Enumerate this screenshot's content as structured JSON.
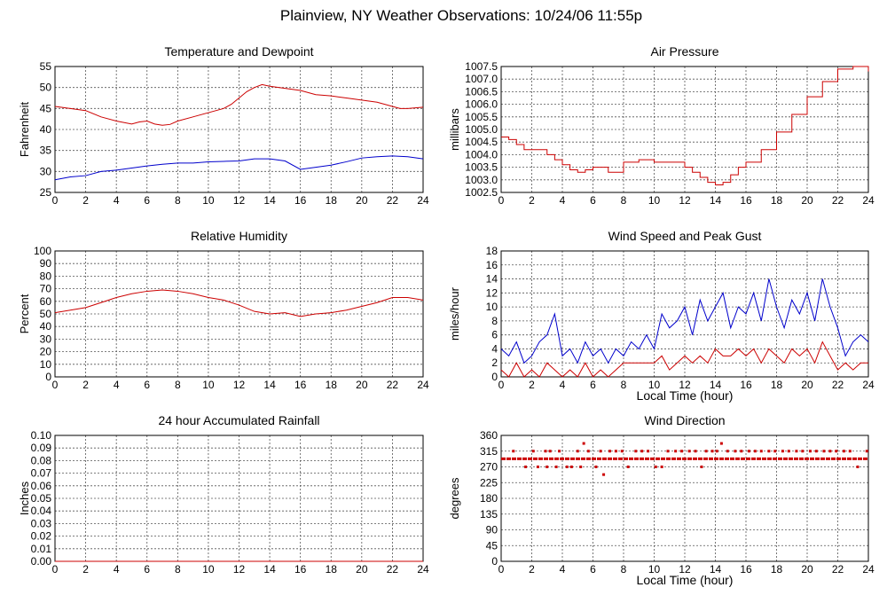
{
  "page": {
    "title": "Plainview, NY Weather Observations: 10/24/06 11:55p"
  },
  "chart_data": [
    {
      "type": "line",
      "title": "Temperature and Dewpoint",
      "xlabel": "",
      "ylabel": "Fahrenheit",
      "xlim": [
        0,
        24
      ],
      "ylim": [
        25,
        55
      ],
      "xticks": [
        0,
        2,
        4,
        6,
        8,
        10,
        12,
        14,
        16,
        18,
        20,
        22,
        24
      ],
      "yticks": [
        25,
        30,
        35,
        40,
        45,
        50,
        55
      ],
      "grid": true,
      "series": [
        {
          "color": "#cc0000",
          "style": "line",
          "x": [
            0,
            1,
            2,
            3,
            4,
            5,
            5.5,
            6,
            6.5,
            7,
            7.5,
            8,
            9,
            10,
            11,
            11.5,
            12,
            12.5,
            13,
            13.5,
            14,
            15,
            16,
            17,
            18,
            19,
            20,
            21,
            22,
            22.5,
            23,
            24
          ],
          "y": [
            45.5,
            45,
            44.5,
            43,
            42,
            41.3,
            41.8,
            42,
            41.3,
            41,
            41.2,
            42,
            43,
            44,
            45,
            46,
            47.5,
            49,
            50,
            50.7,
            50.3,
            49.8,
            49.3,
            48.3,
            48,
            47.5,
            47,
            46.5,
            45.5,
            45,
            45,
            45.3
          ]
        },
        {
          "color": "#0000cc",
          "style": "line",
          "x": [
            0,
            1,
            2,
            3,
            4,
            5,
            6,
            7,
            8,
            9,
            10,
            11,
            12,
            13,
            14,
            15,
            16,
            17,
            18,
            19,
            20,
            21,
            22,
            23,
            24
          ],
          "y": [
            28,
            28.7,
            29,
            30,
            30.3,
            30.8,
            31.3,
            31.7,
            32,
            32,
            32.3,
            32.4,
            32.5,
            33,
            33,
            32.5,
            30.5,
            31,
            31.5,
            32.3,
            33.2,
            33.5,
            33.7,
            33.5,
            33
          ]
        }
      ]
    },
    {
      "type": "line",
      "title": "Air Pressure",
      "xlabel": "",
      "ylabel": "millibars",
      "xlim": [
        0,
        24
      ],
      "ylim": [
        1002.5,
        1007.5
      ],
      "xticks": [
        0,
        2,
        4,
        6,
        8,
        10,
        12,
        14,
        16,
        18,
        20,
        22,
        24
      ],
      "yticks": [
        1002.5,
        1003.0,
        1003.5,
        1004.0,
        1004.5,
        1005.0,
        1005.5,
        1006.0,
        1006.5,
        1007.0,
        1007.5
      ],
      "ytick_labels": [
        "1002.5",
        "1003.0",
        "1003.5",
        "1004.0",
        "1004.5",
        "1005.0",
        "1005.5",
        "1006.0",
        "1006.5",
        "1007.0",
        "1007.5"
      ],
      "grid": true,
      "series": [
        {
          "color": "#cc0000",
          "style": "step",
          "x": [
            0,
            0.5,
            1,
            1.5,
            2,
            3,
            3.5,
            4,
            4.5,
            5,
            5.5,
            6,
            7,
            7.8,
            8,
            9,
            10,
            11,
            12,
            12.5,
            13,
            13.5,
            14,
            14.5,
            15,
            15.5,
            16,
            17,
            18,
            19,
            20,
            21,
            22,
            23,
            24
          ],
          "y": [
            1004.7,
            1004.6,
            1004.4,
            1004.2,
            1004.2,
            1004.0,
            1003.8,
            1003.6,
            1003.4,
            1003.3,
            1003.4,
            1003.5,
            1003.3,
            1003.3,
            1003.7,
            1003.8,
            1003.7,
            1003.7,
            1003.5,
            1003.3,
            1003.1,
            1002.9,
            1002.8,
            1002.9,
            1003.2,
            1003.5,
            1003.7,
            1004.2,
            1004.9,
            1005.6,
            1006.3,
            1006.9,
            1007.4,
            1007.5,
            1007.3
          ]
        }
      ]
    },
    {
      "type": "line",
      "title": "Relative Humidity",
      "xlabel": "",
      "ylabel": "Percent",
      "xlim": [
        0,
        24
      ],
      "ylim": [
        0,
        100
      ],
      "xticks": [
        0,
        2,
        4,
        6,
        8,
        10,
        12,
        14,
        16,
        18,
        20,
        22,
        24
      ],
      "yticks": [
        0,
        10,
        20,
        30,
        40,
        50,
        60,
        70,
        80,
        90,
        100
      ],
      "grid": true,
      "series": [
        {
          "color": "#cc0000",
          "style": "line",
          "x": [
            0,
            1,
            2,
            3,
            4,
            5,
            6,
            7,
            8,
            9,
            10,
            11,
            12,
            13,
            14,
            15,
            16,
            17,
            18,
            19,
            20,
            21,
            22,
            23,
            24
          ],
          "y": [
            51,
            53,
            55,
            59,
            63,
            66,
            68,
            69,
            68,
            66,
            63,
            61,
            57,
            52,
            50,
            51,
            48,
            50,
            51,
            53,
            56,
            59,
            63,
            63,
            61
          ]
        }
      ]
    },
    {
      "type": "line",
      "title": "Wind Speed and Peak Gust",
      "xlabel": "Local Time (hour)",
      "ylabel": "miles/hour",
      "xlim": [
        0,
        24
      ],
      "ylim": [
        0,
        18
      ],
      "xticks": [
        0,
        2,
        4,
        6,
        8,
        10,
        12,
        14,
        16,
        18,
        20,
        22,
        24
      ],
      "yticks": [
        0,
        2,
        4,
        6,
        8,
        10,
        12,
        14,
        16,
        18
      ],
      "grid": true,
      "series": [
        {
          "color": "#0000cc",
          "style": "line",
          "x": [
            0,
            0.5,
            1,
            1.5,
            2,
            2.5,
            3,
            3.5,
            4,
            4.5,
            5,
            5.5,
            6,
            6.5,
            7,
            7.5,
            8,
            8.5,
            9,
            9.5,
            10,
            10.5,
            11,
            11.5,
            12,
            12.5,
            13,
            13.5,
            14,
            14.5,
            15,
            15.5,
            16,
            16.5,
            17,
            17.5,
            18,
            18.5,
            19,
            19.5,
            20,
            20.5,
            21,
            21.5,
            22,
            22.5,
            23,
            23.5,
            24
          ],
          "y": [
            4,
            3,
            5,
            2,
            3,
            5,
            6,
            9,
            3,
            4,
            2,
            5,
            3,
            4,
            2,
            4,
            3,
            5,
            4,
            6,
            4,
            9,
            7,
            8,
            10,
            6,
            11,
            8,
            10,
            12,
            7,
            10,
            9,
            12,
            8,
            14,
            10,
            7,
            11,
            9,
            12,
            8,
            14,
            10,
            7,
            3,
            5,
            6,
            5
          ]
        },
        {
          "color": "#cc0000",
          "style": "line",
          "x": [
            0,
            0.5,
            1,
            1.5,
            2,
            2.5,
            3,
            3.5,
            4,
            4.5,
            5,
            5.5,
            6,
            6.5,
            7,
            7.5,
            8,
            8.5,
            9,
            9.5,
            10,
            10.5,
            11,
            11.5,
            12,
            12.5,
            13,
            13.5,
            14,
            14.5,
            15,
            15.5,
            16,
            16.5,
            17,
            17.5,
            18,
            18.5,
            19,
            19.5,
            20,
            20.5,
            21,
            21.5,
            22,
            22.5,
            23,
            23.5,
            24
          ],
          "y": [
            1,
            0,
            2,
            0,
            1,
            0,
            2,
            1,
            0,
            1,
            0,
            2,
            0,
            1,
            0,
            1,
            2,
            2,
            2,
            2,
            2,
            3,
            1,
            2,
            3,
            2,
            3,
            2,
            4,
            3,
            3,
            4,
            3,
            4,
            2,
            4,
            3,
            2,
            4,
            3,
            4,
            2,
            5,
            3,
            1,
            2,
            1,
            2,
            2
          ]
        }
      ]
    },
    {
      "type": "line",
      "title": "24 hour Accumulated Rainfall",
      "xlabel": "",
      "ylabel": "Inches",
      "xlim": [
        0,
        24
      ],
      "ylim": [
        0,
        0.1
      ],
      "xticks": [
        0,
        2,
        4,
        6,
        8,
        10,
        12,
        14,
        16,
        18,
        20,
        22,
        24
      ],
      "yticks": [
        0,
        0.01,
        0.02,
        0.03,
        0.04,
        0.05,
        0.06,
        0.07,
        0.08,
        0.09,
        0.1
      ],
      "ytick_labels": [
        "0.00",
        "0.01",
        "0.02",
        "0.03",
        "0.04",
        "0.05",
        "0.06",
        "0.07",
        "0.08",
        "0.09",
        "0.10"
      ],
      "grid": true,
      "series": [
        {
          "color": "#cc0000",
          "style": "line",
          "x": [
            0,
            24
          ],
          "y": [
            0,
            0
          ]
        }
      ]
    },
    {
      "type": "scatter",
      "title": "Wind Direction",
      "xlabel": "Local Time (hour)",
      "ylabel": "degrees",
      "xlim": [
        0,
        24
      ],
      "ylim": [
        0,
        360
      ],
      "xticks": [
        0,
        2,
        4,
        6,
        8,
        10,
        12,
        14,
        16,
        18,
        20,
        22,
        24
      ],
      "yticks": [
        0,
        45,
        90,
        135,
        180,
        225,
        270,
        315,
        360
      ],
      "grid": true,
      "series": [
        {
          "color": "#cc0000",
          "style": "dash",
          "x": [
            0,
            24
          ],
          "y": [
            293,
            293
          ]
        },
        {
          "color": "#cc0000",
          "style": "points",
          "x": [
            0.8,
            1.6,
            2.1,
            2.4,
            2.9,
            3.0,
            3.2,
            3.6,
            3.8,
            4.3,
            4.6,
            5.0,
            5.2,
            5.4,
            5.7,
            6.2,
            6.5,
            6.7,
            7.1,
            7.5,
            7.9,
            8.3,
            8.8,
            9.2,
            9.6,
            10.1,
            10.5,
            10.9,
            11.4,
            11.8,
            12.3,
            12.7,
            13.1,
            13.4,
            13.8,
            14.1,
            14.4,
            14.8,
            15.3,
            15.7,
            16.2,
            16.6,
            17.0,
            17.5,
            17.9,
            18.4,
            18.8,
            19.3,
            19.7,
            20.2,
            20.6,
            21.1,
            21.5,
            21.9,
            22.4,
            22.8,
            23.3,
            23.9
          ],
          "y": [
            315,
            270,
            315,
            270,
            315,
            270,
            315,
            270,
            315,
            270,
            270,
            315,
            270,
            337,
            315,
            270,
            315,
            248,
            315,
            315,
            315,
            270,
            315,
            315,
            315,
            270,
            270,
            315,
            315,
            315,
            315,
            315,
            270,
            315,
            315,
            315,
            337,
            315,
            315,
            315,
            315,
            315,
            315,
            315,
            315,
            315,
            315,
            315,
            315,
            315,
            315,
            315,
            315,
            315,
            315,
            315,
            270,
            315
          ]
        }
      ]
    }
  ]
}
